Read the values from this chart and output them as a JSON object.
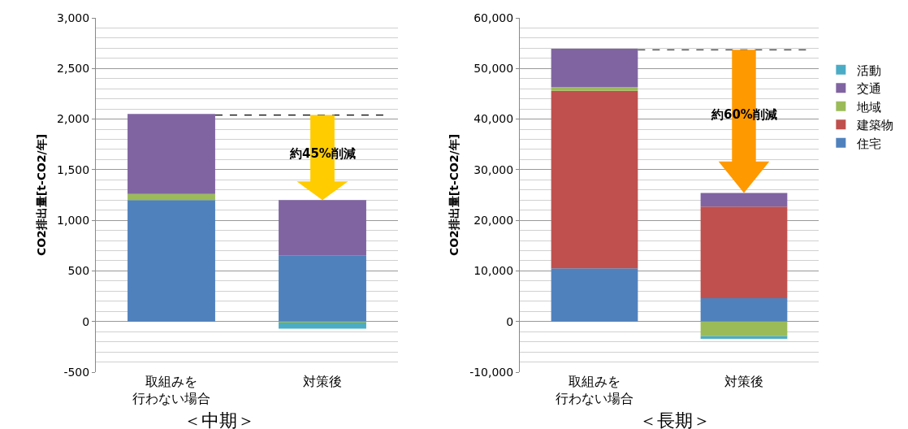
{
  "chart_data": [
    {
      "type": "bar",
      "stacked": true,
      "title": "＜中期＞",
      "ylabel": "CO2排出量[t-CO2/年]",
      "categories": [
        "取組みを行わない場合",
        "対策後"
      ],
      "series": [
        {
          "color": "#4f81bd",
          "values": [
            1200,
            650
          ]
        },
        {
          "color": "#c0504d",
          "values": [
            0,
            0
          ]
        },
        {
          "color": "#9bbb59",
          "values": [
            60,
            -10
          ]
        },
        {
          "color": "#8064a2",
          "values": [
            790,
            550
          ]
        },
        {
          "color": "#4bacc6",
          "values": [
            0,
            -60
          ]
        }
      ],
      "ylim": [
        -500,
        3000
      ],
      "yticks": [
        {
          "value": -500,
          "label": "-500"
        },
        {
          "value": 0,
          "label": "0"
        },
        {
          "value": 500,
          "label": "500"
        },
        {
          "value": 1000,
          "label": "1,000"
        },
        {
          "value": 1500,
          "label": "1,500"
        },
        {
          "value": 2000,
          "label": "2,000"
        },
        {
          "value": 2500,
          "label": "2,500"
        },
        {
          "value": 3000,
          "label": "3,000"
        }
      ],
      "grid": true,
      "legend": false,
      "ref_lines": [
        {
          "axis": "y",
          "value": 2040,
          "line_style": "dashed",
          "color": "#000000"
        }
      ],
      "annotations": [
        "約45%削減"
      ]
    },
    {
      "type": "bar",
      "stacked": true,
      "title": "＜長期＞",
      "ylabel": "CO2排出量[t-CO2/年]",
      "categories": [
        "取組みを行わない場合",
        "対策後"
      ],
      "series": [
        {
          "name": "住宅",
          "color": "#4f81bd",
          "values": [
            10500,
            4600
          ]
        },
        {
          "name": "建築物",
          "color": "#c0504d",
          "values": [
            35100,
            18100
          ]
        },
        {
          "name": "地域",
          "color": "#9bbb59",
          "values": [
            700,
            -2900
          ]
        },
        {
          "name": "交通",
          "color": "#8064a2",
          "values": [
            7600,
            2700
          ]
        },
        {
          "name": "活動",
          "color": "#4bacc6",
          "values": [
            0,
            -500
          ]
        }
      ],
      "ylim": [
        -10000,
        60000
      ],
      "yticks": [
        {
          "value": -10000,
          "label": "-10,000"
        },
        {
          "value": 0,
          "label": "0"
        },
        {
          "value": 10000,
          "label": "10,000"
        },
        {
          "value": 20000,
          "label": "20,000"
        },
        {
          "value": 30000,
          "label": "30,000"
        },
        {
          "value": 40000,
          "label": "40,000"
        },
        {
          "value": 50000,
          "label": "50,000"
        },
        {
          "value": 60000,
          "label": "60,000"
        }
      ],
      "grid": true,
      "legend": "right",
      "ref_lines": [
        {
          "axis": "y",
          "value": 53700,
          "line_style": "dashed",
          "color": "#000000"
        }
      ],
      "annotations": [
        "約60%削減"
      ]
    }
  ]
}
